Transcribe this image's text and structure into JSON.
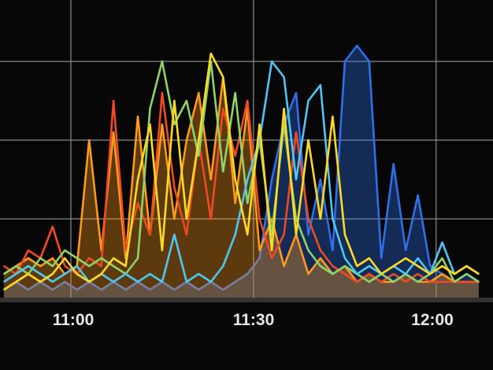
{
  "chart_data": {
    "type": "line",
    "title": "",
    "xlabel": "",
    "ylabel": "",
    "grid": true,
    "xticks": [
      "11:00",
      "11:30",
      "12:00"
    ],
    "ylim": [
      0,
      3.8
    ],
    "x": [
      "10:49",
      "10:51",
      "10:53",
      "10:55",
      "10:57",
      "10:59",
      "11:01",
      "11:03",
      "11:05",
      "11:07",
      "11:09",
      "11:11",
      "11:13",
      "11:15",
      "11:17",
      "11:19",
      "11:21",
      "11:23",
      "11:25",
      "11:27",
      "11:29",
      "11:31",
      "11:33",
      "11:35",
      "11:37",
      "11:39",
      "11:41",
      "11:43",
      "11:45",
      "11:47",
      "11:49",
      "11:51",
      "11:53",
      "11:55",
      "11:57",
      "11:59",
      "12:01",
      "12:03",
      "12:05",
      "12:07"
    ],
    "series": [
      {
        "color": "#2f6fe8",
        "fill": true,
        "values": [
          0.1,
          0.2,
          0.1,
          0.2,
          0.1,
          0.2,
          0.1,
          0.2,
          0.1,
          0.2,
          0.1,
          0.2,
          0.1,
          0.2,
          0.1,
          0.2,
          0.1,
          0.2,
          0.1,
          0.2,
          0.3,
          0.5,
          1.5,
          2.2,
          2.6,
          0.8,
          1.5,
          0.6,
          3.0,
          3.2,
          3.0,
          0.5,
          1.7,
          0.6,
          1.3,
          0.4,
          0.3,
          0.2,
          0.3,
          0.2
        ]
      },
      {
        "color": "#ff9a1e",
        "fill": true,
        "values": [
          0.3,
          0.4,
          0.5,
          0.4,
          0.5,
          0.3,
          0.4,
          2.0,
          0.6,
          2.1,
          0.5,
          2.3,
          0.8,
          2.2,
          1.0,
          2.0,
          2.6,
          1.5,
          2.8,
          1.2,
          2.4,
          0.6,
          1.0,
          0.4,
          0.8,
          0.3,
          0.5,
          0.3,
          0.4,
          0.2,
          0.3,
          0.2,
          0.2,
          0.3,
          0.2,
          0.2,
          0.3,
          0.2,
          0.2,
          0.2
        ]
      },
      {
        "color": "#f04a22",
        "fill": false,
        "values": [
          0.4,
          0.3,
          0.6,
          0.5,
          0.9,
          0.4,
          0.3,
          0.5,
          0.4,
          2.5,
          0.6,
          1.2,
          0.8,
          2.6,
          1.4,
          0.8,
          2.0,
          1.0,
          2.4,
          1.8,
          2.5,
          1.0,
          0.5,
          0.8,
          2.1,
          1.0,
          0.6,
          0.4,
          0.3,
          0.2,
          0.3,
          0.2,
          0.3,
          0.2,
          0.3,
          0.2,
          0.2,
          0.2,
          0.2,
          0.2
        ]
      },
      {
        "color": "#8ed36a",
        "fill": false,
        "values": [
          0.3,
          0.4,
          0.3,
          0.5,
          0.4,
          0.6,
          0.5,
          0.4,
          0.5,
          0.4,
          0.3,
          0.5,
          2.4,
          3.0,
          2.2,
          2.5,
          1.8,
          3.0,
          1.6,
          2.6,
          1.2,
          2.0,
          0.8,
          2.2,
          1.0,
          0.6,
          0.4,
          0.3,
          0.4,
          0.3,
          0.2,
          0.3,
          0.2,
          0.3,
          0.2,
          0.3,
          0.5,
          0.2,
          0.3,
          0.2
        ]
      },
      {
        "color": "#4fc6f0",
        "fill": false,
        "values": [
          0.2,
          0.3,
          0.4,
          0.3,
          0.2,
          0.3,
          0.4,
          0.2,
          0.3,
          0.2,
          0.3,
          0.2,
          0.3,
          0.2,
          0.8,
          0.2,
          0.3,
          0.2,
          0.4,
          0.8,
          1.5,
          2.0,
          3.0,
          2.8,
          1.5,
          2.5,
          2.7,
          1.0,
          0.5,
          0.3,
          0.4,
          0.3,
          0.4,
          0.3,
          0.5,
          0.3,
          0.7,
          0.3,
          0.4,
          0.3
        ]
      },
      {
        "color": "#ffd928",
        "fill": false,
        "values": [
          0.1,
          0.2,
          0.3,
          0.2,
          0.3,
          0.5,
          0.3,
          0.2,
          0.3,
          0.5,
          0.4,
          1.5,
          2.2,
          0.6,
          2.5,
          1.0,
          2.0,
          3.1,
          2.8,
          1.5,
          0.8,
          2.2,
          0.6,
          2.4,
          0.8,
          2.0,
          1.0,
          2.3,
          0.8,
          0.4,
          0.5,
          0.3,
          0.4,
          0.5,
          0.4,
          0.3,
          0.4,
          0.3,
          0.4,
          0.3
        ]
      }
    ]
  }
}
